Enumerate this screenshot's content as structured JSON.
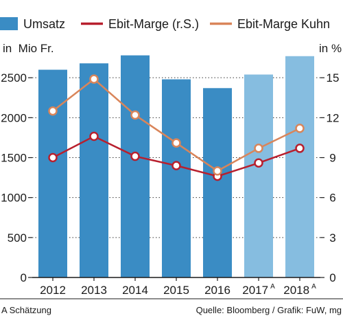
{
  "chart_data": {
    "type": "bar",
    "categories": [
      "2012",
      "2013",
      "2014",
      "2015",
      "2016",
      "2017",
      "2018"
    ],
    "category_superscripts": [
      "",
      "",
      "",
      "",
      "",
      "A",
      "A"
    ],
    "series": [
      {
        "name": "Umsatz",
        "kind": "bar",
        "axis": "left",
        "color": "#3a8cc4",
        "estimate_color": "#86bde0",
        "values": [
          2600,
          2680,
          2780,
          2480,
          2370,
          2540,
          2770
        ]
      },
      {
        "name": "Ebit-Marge (r.S.)",
        "kind": "line",
        "axis": "right",
        "color": "#b81f2d",
        "values": [
          9.0,
          10.6,
          9.1,
          8.4,
          7.6,
          8.6,
          9.7
        ]
      },
      {
        "name": "Ebit-Marge Kuhn",
        "kind": "line",
        "axis": "right",
        "color": "#d9855a",
        "values": [
          12.5,
          14.9,
          12.2,
          10.1,
          8.0,
          9.7,
          11.2
        ]
      }
    ],
    "estimate_categories": [
      "2017",
      "2018"
    ],
    "y_left": {
      "unit": "in  Mio Fr.",
      "lim": [
        0,
        3000
      ],
      "ticks": [
        0,
        500,
        1000,
        1500,
        2000,
        2500
      ],
      "tick_labels": [
        "0",
        "500",
        "1000",
        "1500",
        "2000",
        "2500"
      ]
    },
    "y_right": {
      "unit": "in %",
      "lim": [
        0,
        18
      ],
      "ticks": [
        0,
        3,
        6,
        9,
        12,
        15
      ],
      "tick_labels": [
        "0",
        "3",
        "6",
        "9",
        "12",
        "15"
      ]
    },
    "grid": "dotted horizontal",
    "legend_position": "top",
    "footnote": "A Schätzung",
    "source": "Quelle: Bloomberg / Grafik: FuW, mg"
  }
}
